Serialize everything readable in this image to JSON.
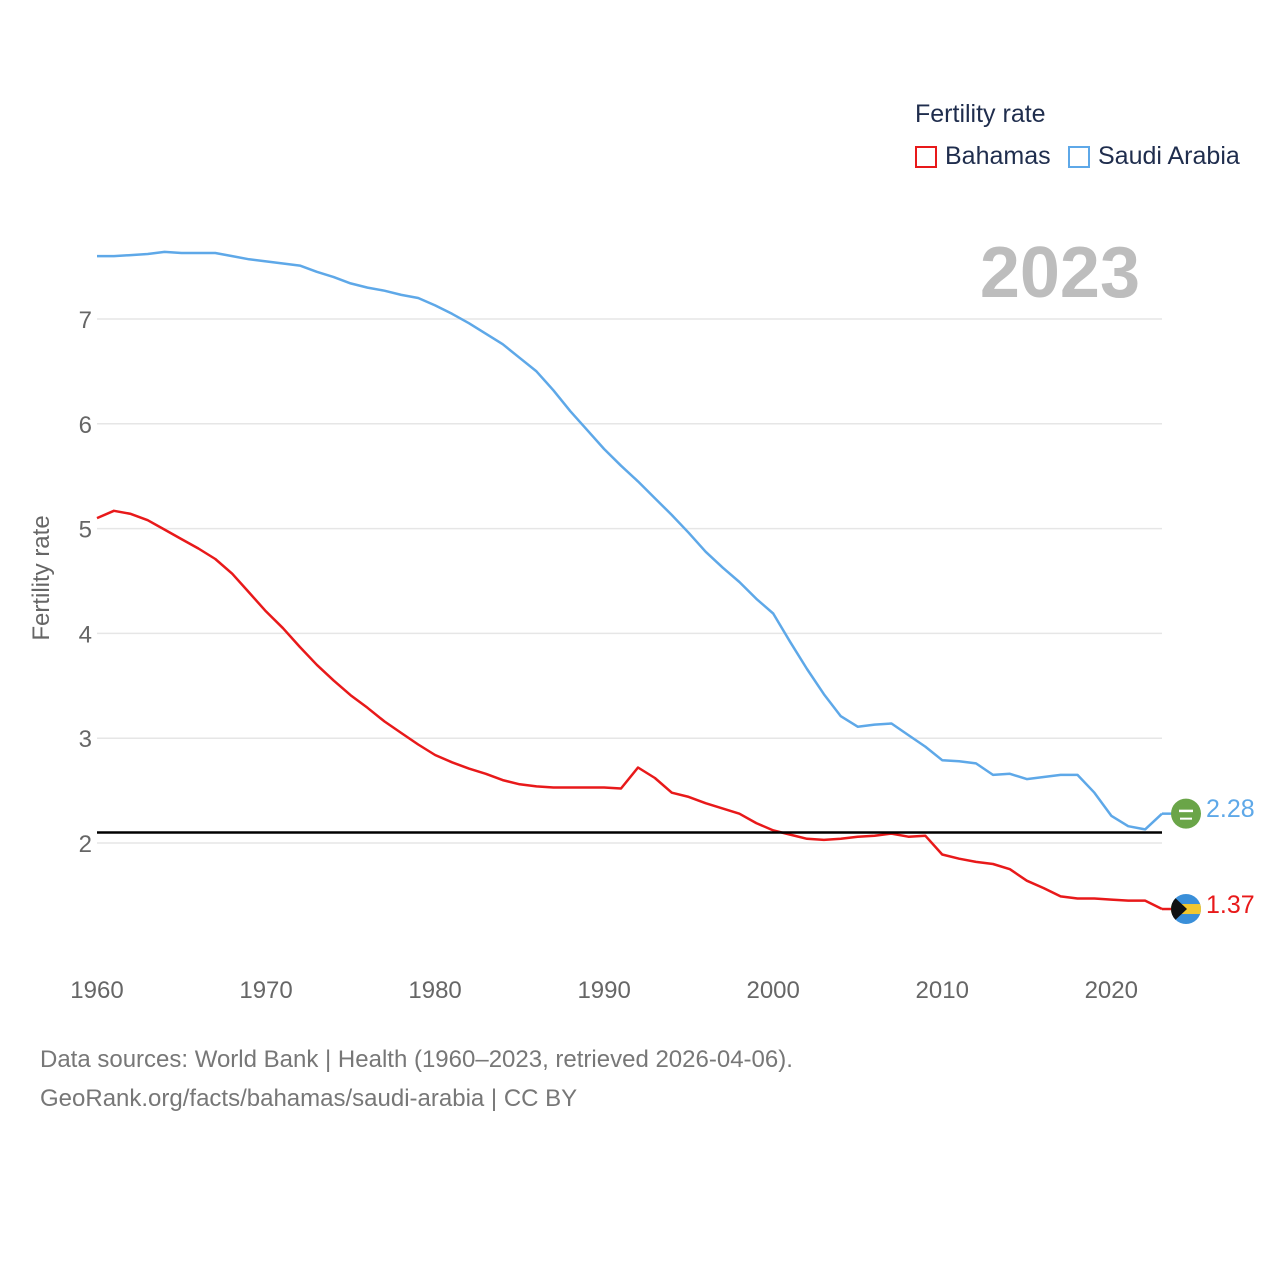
{
  "legend": {
    "title": "Fertility rate",
    "items": [
      {
        "label": "Bahamas",
        "color": "#e8191a"
      },
      {
        "label": "Saudi Arabia",
        "color": "#5ea8e8"
      }
    ]
  },
  "year_watermark": "2023",
  "end_labels": {
    "bahamas": "1.37",
    "saudi": "2.28"
  },
  "source": {
    "line1": "Data sources: World Bank | Health (1960–2023, retrieved 2026-04-06).",
    "line2": "GeoRank.org/facts/bahamas/saudi-arabia | CC BY"
  },
  "chart_data": {
    "type": "line",
    "title": "Fertility rate",
    "xlabel": "",
    "ylabel": "Fertility rate",
    "xlim": [
      1960,
      2023
    ],
    "ylim": [
      1.0,
      7.8
    ],
    "xticks": [
      1960,
      1970,
      1980,
      1990,
      2000,
      2010,
      2020
    ],
    "yticks": [
      2,
      3,
      4,
      5,
      6,
      7
    ],
    "reference_line": 2.1,
    "x": [
      1960,
      1961,
      1962,
      1963,
      1964,
      1965,
      1966,
      1967,
      1968,
      1969,
      1970,
      1971,
      1972,
      1973,
      1974,
      1975,
      1976,
      1977,
      1978,
      1979,
      1980,
      1981,
      1982,
      1983,
      1984,
      1985,
      1986,
      1987,
      1988,
      1989,
      1990,
      1991,
      1992,
      1993,
      1994,
      1995,
      1996,
      1997,
      1998,
      1999,
      2000,
      2001,
      2002,
      2003,
      2004,
      2005,
      2006,
      2007,
      2008,
      2009,
      2010,
      2011,
      2012,
      2013,
      2014,
      2015,
      2016,
      2017,
      2018,
      2019,
      2020,
      2021,
      2022,
      2023
    ],
    "series": [
      {
        "name": "Bahamas",
        "color": "#e8191a",
        "values": [
          5.1,
          5.17,
          5.14,
          5.08,
          4.99,
          4.9,
          4.81,
          4.71,
          4.57,
          4.39,
          4.21,
          4.05,
          3.87,
          3.7,
          3.55,
          3.41,
          3.29,
          3.16,
          3.05,
          2.94,
          2.84,
          2.77,
          2.71,
          2.66,
          2.6,
          2.56,
          2.54,
          2.53,
          2.53,
          2.53,
          2.53,
          2.52,
          2.72,
          2.62,
          2.48,
          2.44,
          2.38,
          2.33,
          2.28,
          2.19,
          2.12,
          2.08,
          2.04,
          2.03,
          2.04,
          2.06,
          2.07,
          2.09,
          2.06,
          2.07,
          1.89,
          1.85,
          1.82,
          1.8,
          1.75,
          1.64,
          1.57,
          1.49,
          1.47,
          1.47,
          1.46,
          1.45,
          1.45,
          1.37
        ]
      },
      {
        "name": "Saudi Arabia",
        "color": "#5ea8e8",
        "values": [
          7.6,
          7.6,
          7.61,
          7.62,
          7.64,
          7.63,
          7.63,
          7.63,
          7.6,
          7.57,
          7.55,
          7.53,
          7.51,
          7.45,
          7.4,
          7.34,
          7.3,
          7.27,
          7.23,
          7.2,
          7.13,
          7.05,
          6.96,
          6.86,
          6.76,
          6.63,
          6.5,
          6.32,
          6.12,
          5.94,
          5.76,
          5.6,
          5.45,
          5.29,
          5.13,
          4.96,
          4.78,
          4.63,
          4.49,
          4.33,
          4.19,
          3.92,
          3.66,
          3.42,
          3.21,
          3.11,
          3.13,
          3.14,
          3.03,
          2.92,
          2.79,
          2.78,
          2.76,
          2.65,
          2.66,
          2.61,
          2.63,
          2.65,
          2.65,
          2.48,
          2.26,
          2.16,
          2.13,
          2.28
        ]
      }
    ]
  }
}
